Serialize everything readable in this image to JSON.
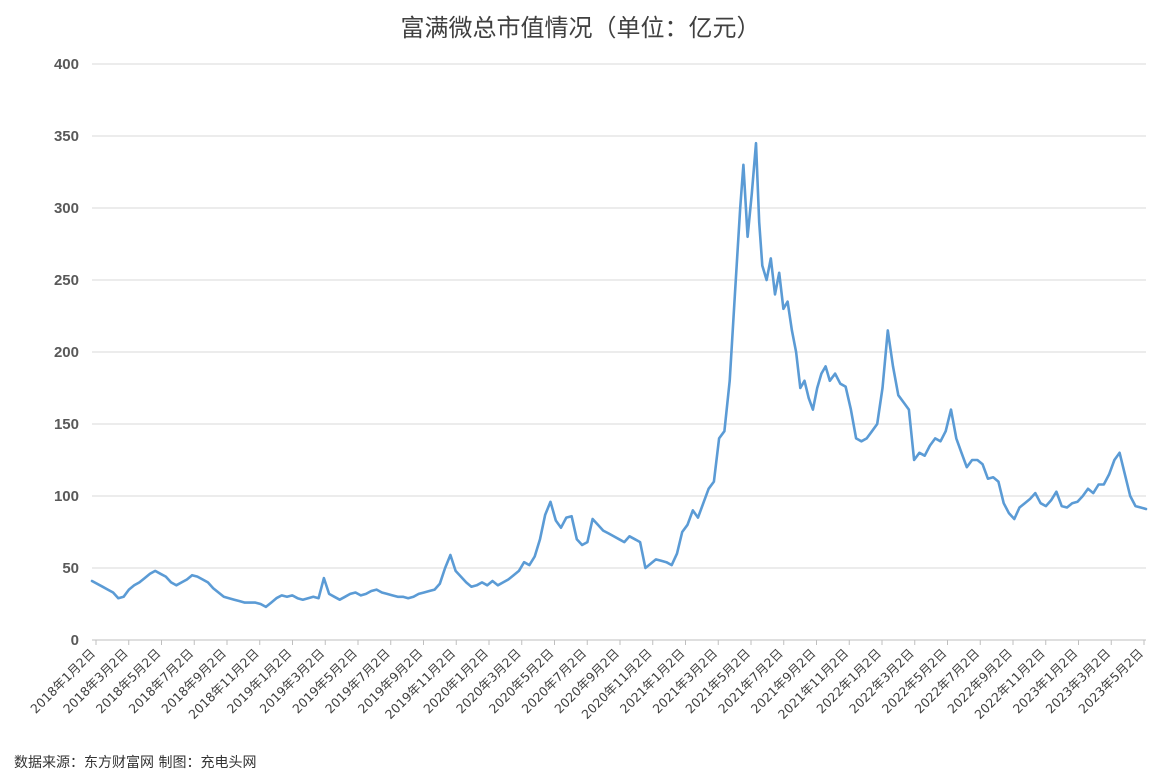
{
  "page": {
    "title": "富满微总市值情况（单位：亿元）",
    "source_note": "数据来源：东方财富网  制图：充电头网"
  },
  "chart_data": {
    "type": "line",
    "title": "富满微总市值情况（单位：亿元）",
    "xlabel": "",
    "ylabel": "",
    "ylim": [
      0,
      400
    ],
    "yticks": [
      0,
      50,
      100,
      150,
      200,
      250,
      300,
      350,
      400
    ],
    "grid": true,
    "legend": "none",
    "line_color": "#5B9BD5",
    "x_tick_labels": [
      "2018年1月2日",
      "2018年3月2日",
      "2018年5月2日",
      "2018年7月2日",
      "2018年9月2日",
      "2018年11月2日",
      "2019年1月2日",
      "2019年3月2日",
      "2019年5月2日",
      "2019年7月2日",
      "2019年9月2日",
      "2019年11月2日",
      "2020年1月2日",
      "2020年3月2日",
      "2020年5月2日",
      "2020年7月2日",
      "2020年9月2日",
      "2020年11月2日",
      "2021年1月2日",
      "2021年3月2日",
      "2021年5月2日",
      "2021年7月2日",
      "2021年9月2日",
      "2021年11月2日",
      "2022年1月2日",
      "2022年3月2日",
      "2022年5月2日",
      "2022年7月2日",
      "2022年9月2日",
      "2022年11月2日",
      "2023年1月2日",
      "2023年3月2日",
      "2023年5月2日"
    ],
    "series": [
      {
        "values": [
          [
            0,
            41
          ],
          [
            1,
            37
          ],
          [
            1.5,
            35
          ],
          [
            2,
            33
          ],
          [
            2.5,
            29
          ],
          [
            3,
            30
          ],
          [
            3.5,
            35
          ],
          [
            4,
            38
          ],
          [
            4.5,
            40
          ],
          [
            5,
            43
          ],
          [
            5.5,
            46
          ],
          [
            6,
            48
          ],
          [
            6.5,
            46
          ],
          [
            7,
            44
          ],
          [
            7.5,
            40
          ],
          [
            8,
            38
          ],
          [
            8.5,
            40
          ],
          [
            9,
            42
          ],
          [
            9.5,
            45
          ],
          [
            10,
            44
          ],
          [
            10.5,
            42
          ],
          [
            11,
            40
          ],
          [
            11.5,
            36
          ],
          [
            12,
            33
          ],
          [
            12.5,
            30
          ],
          [
            13,
            29
          ],
          [
            13.5,
            28
          ],
          [
            14,
            27
          ],
          [
            14.5,
            26
          ],
          [
            15,
            26
          ],
          [
            15.5,
            26
          ],
          [
            16,
            25
          ],
          [
            16.5,
            23
          ],
          [
            17,
            26
          ],
          [
            17.5,
            29
          ],
          [
            18,
            31
          ],
          [
            18.5,
            30
          ],
          [
            19,
            31
          ],
          [
            19.5,
            29
          ],
          [
            20,
            28
          ],
          [
            20.5,
            29
          ],
          [
            21,
            30
          ],
          [
            21.5,
            29
          ],
          [
            22,
            43
          ],
          [
            22.5,
            32
          ],
          [
            23,
            30
          ],
          [
            23.5,
            28
          ],
          [
            24,
            30
          ],
          [
            24.5,
            32
          ],
          [
            25,
            33
          ],
          [
            25.5,
            31
          ],
          [
            26,
            32
          ],
          [
            26.5,
            34
          ],
          [
            27,
            35
          ],
          [
            27.5,
            33
          ],
          [
            28,
            32
          ],
          [
            28.5,
            31
          ],
          [
            29,
            30
          ],
          [
            29.5,
            30
          ],
          [
            30,
            29
          ],
          [
            30.5,
            30
          ],
          [
            31,
            32
          ],
          [
            31.5,
            33
          ],
          [
            32,
            34
          ],
          [
            32.5,
            35
          ],
          [
            33,
            39
          ],
          [
            33.5,
            50
          ],
          [
            34,
            59
          ],
          [
            34.5,
            48
          ],
          [
            35,
            44
          ],
          [
            35.5,
            40
          ],
          [
            36,
            37
          ],
          [
            36.5,
            38
          ],
          [
            37,
            40
          ],
          [
            37.5,
            38
          ],
          [
            38,
            41
          ],
          [
            38.5,
            38
          ],
          [
            39,
            40
          ],
          [
            39.5,
            42
          ],
          [
            40,
            45
          ],
          [
            40.5,
            48
          ],
          [
            41,
            54
          ],
          [
            41.5,
            52
          ],
          [
            42,
            58
          ],
          [
            42.5,
            70
          ],
          [
            43,
            87
          ],
          [
            43.5,
            96
          ],
          [
            44,
            83
          ],
          [
            44.5,
            78
          ],
          [
            45,
            85
          ],
          [
            45.5,
            86
          ],
          [
            46,
            70
          ],
          [
            46.5,
            66
          ],
          [
            47,
            68
          ],
          [
            47.5,
            84
          ],
          [
            48,
            80
          ],
          [
            48.5,
            76
          ],
          [
            49,
            74
          ],
          [
            49.5,
            72
          ],
          [
            50,
            70
          ],
          [
            50.5,
            68
          ],
          [
            51,
            72
          ],
          [
            51.5,
            70
          ],
          [
            52,
            68
          ],
          [
            52.5,
            50
          ],
          [
            53,
            53
          ],
          [
            53.5,
            56
          ],
          [
            54,
            55
          ],
          [
            54.5,
            54
          ],
          [
            55,
            52
          ],
          [
            55.5,
            60
          ],
          [
            56,
            75
          ],
          [
            56.5,
            80
          ],
          [
            57,
            90
          ],
          [
            57.5,
            85
          ],
          [
            58,
            95
          ],
          [
            58.5,
            105
          ],
          [
            59,
            110
          ],
          [
            59.5,
            140
          ],
          [
            60,
            145
          ],
          [
            60.5,
            180
          ],
          [
            61,
            240
          ],
          [
            61.5,
            300
          ],
          [
            61.8,
            330
          ],
          [
            62.2,
            280
          ],
          [
            62.6,
            310
          ],
          [
            63,
            345
          ],
          [
            63.3,
            290
          ],
          [
            63.6,
            260
          ],
          [
            64,
            250
          ],
          [
            64.4,
            265
          ],
          [
            64.8,
            240
          ],
          [
            65.2,
            255
          ],
          [
            65.6,
            230
          ],
          [
            66,
            235
          ],
          [
            66.4,
            215
          ],
          [
            66.8,
            200
          ],
          [
            67.2,
            175
          ],
          [
            67.6,
            180
          ],
          [
            68,
            168
          ],
          [
            68.4,
            160
          ],
          [
            68.8,
            175
          ],
          [
            69.2,
            185
          ],
          [
            69.6,
            190
          ],
          [
            70,
            180
          ],
          [
            70.5,
            185
          ],
          [
            71,
            178
          ],
          [
            71.5,
            176
          ],
          [
            72,
            160
          ],
          [
            72.5,
            140
          ],
          [
            73,
            138
          ],
          [
            73.5,
            140
          ],
          [
            74,
            145
          ],
          [
            74.5,
            150
          ],
          [
            75,
            175
          ],
          [
            75.5,
            215
          ],
          [
            76,
            190
          ],
          [
            76.5,
            170
          ],
          [
            77,
            165
          ],
          [
            77.5,
            160
          ],
          [
            78,
            125
          ],
          [
            78.5,
            130
          ],
          [
            79,
            128
          ],
          [
            79.5,
            135
          ],
          [
            80,
            140
          ],
          [
            80.5,
            138
          ],
          [
            81,
            145
          ],
          [
            81.5,
            160
          ],
          [
            82,
            140
          ],
          [
            82.5,
            130
          ],
          [
            83,
            120
          ],
          [
            83.5,
            125
          ],
          [
            84,
            125
          ],
          [
            84.5,
            122
          ],
          [
            85,
            112
          ],
          [
            85.5,
            113
          ],
          [
            86,
            110
          ],
          [
            86.5,
            95
          ],
          [
            87,
            88
          ],
          [
            87.5,
            84
          ],
          [
            88,
            92
          ],
          [
            88.5,
            95
          ],
          [
            89,
            98
          ],
          [
            89.5,
            102
          ],
          [
            90,
            95
          ],
          [
            90.5,
            93
          ],
          [
            91,
            97
          ],
          [
            91.5,
            103
          ],
          [
            92,
            93
          ],
          [
            92.5,
            92
          ],
          [
            93,
            95
          ],
          [
            93.5,
            96
          ],
          [
            94,
            100
          ],
          [
            94.5,
            105
          ],
          [
            95,
            102
          ],
          [
            95.5,
            108
          ],
          [
            96,
            108
          ],
          [
            96.5,
            115
          ],
          [
            97,
            125
          ],
          [
            97.5,
            130
          ],
          [
            98,
            115
          ],
          [
            98.5,
            100
          ],
          [
            99,
            93
          ],
          [
            99.5,
            92
          ],
          [
            100,
            91
          ]
        ]
      }
    ]
  }
}
